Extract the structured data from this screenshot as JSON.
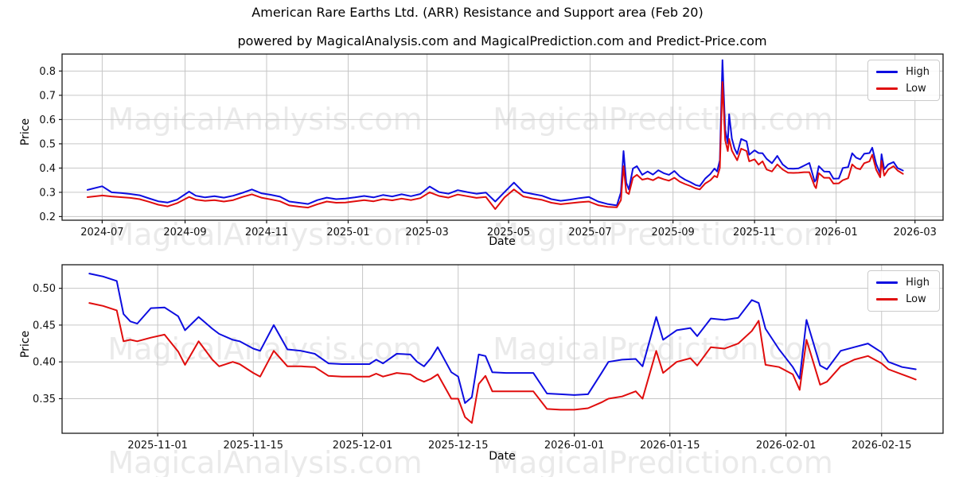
{
  "page": {
    "title": "American Rare Earths Ltd. (ARR) Resistance and Support area (Feb 20)",
    "subtitle": "powered by MagicalAnalysis.com and MagicalPrediction.com and Predict-Price.com"
  },
  "watermarks": {
    "left_text": "MagicalAnalysis.com",
    "right_text": "MagicalPrediction.com",
    "color": "rgba(90,90,90,0.13)"
  },
  "colors": {
    "high": "#0d0de0",
    "low": "#e00d0d",
    "grid": "#c6c6c6",
    "spine": "#1a1a1a",
    "tick_text": "#111111"
  },
  "legend": {
    "high_label": "High",
    "low_label": "Low"
  },
  "axis_labels": {
    "x": "Date",
    "y": "Price"
  },
  "chart_data": [
    {
      "type": "line",
      "title": "",
      "xlabel": "Date",
      "ylabel": "Price",
      "grid": true,
      "legend_position": "upper right",
      "ylim": [
        0.185,
        0.87
      ],
      "xlim": [
        "2024-06-01",
        "2026-03-22"
      ],
      "yticks": [
        {
          "v": 0.2,
          "label": "0.2"
        },
        {
          "v": 0.3,
          "label": "0.3"
        },
        {
          "v": 0.4,
          "label": "0.4"
        },
        {
          "v": 0.5,
          "label": "0.5"
        },
        {
          "v": 0.6,
          "label": "0.6"
        },
        {
          "v": 0.7,
          "label": "0.7"
        },
        {
          "v": 0.8,
          "label": "0.8"
        }
      ],
      "xticks": [
        {
          "date": "2024-07-01",
          "label": "2024-07"
        },
        {
          "date": "2024-09-01",
          "label": "2024-09"
        },
        {
          "date": "2024-11-01",
          "label": "2024-11"
        },
        {
          "date": "2025-01-01",
          "label": "2025-01"
        },
        {
          "date": "2025-03-01",
          "label": "2025-03"
        },
        {
          "date": "2025-05-01",
          "label": "2025-05"
        },
        {
          "date": "2025-07-01",
          "label": "2025-07"
        },
        {
          "date": "2025-09-01",
          "label": "2025-09"
        },
        {
          "date": "2025-11-01",
          "label": "2025-11"
        },
        {
          "date": "2026-01-01",
          "label": "2026-01"
        },
        {
          "date": "2026-03-01",
          "label": "2026-03"
        }
      ],
      "x": [
        "2024-06-20",
        "2024-07-01",
        "2024-07-08",
        "2024-07-15",
        "2024-07-22",
        "2024-07-29",
        "2024-08-05",
        "2024-08-12",
        "2024-08-19",
        "2024-08-26",
        "2024-09-04",
        "2024-09-09",
        "2024-09-16",
        "2024-09-23",
        "2024-09-30",
        "2024-10-07",
        "2024-10-14",
        "2024-10-21",
        "2024-10-28",
        "2024-11-04",
        "2024-11-11",
        "2024-11-18",
        "2024-11-25",
        "2024-12-02",
        "2024-12-09",
        "2024-12-16",
        "2024-12-23",
        "2024-12-30",
        "2025-01-06",
        "2025-01-13",
        "2025-01-20",
        "2025-01-27",
        "2025-02-03",
        "2025-02-10",
        "2025-02-17",
        "2025-02-24",
        "2025-03-03",
        "2025-03-10",
        "2025-03-17",
        "2025-03-24",
        "2025-03-31",
        "2025-04-07",
        "2025-04-14",
        "2025-04-21",
        "2025-04-28",
        "2025-05-05",
        "2025-05-12",
        "2025-05-19",
        "2025-05-26",
        "2025-06-02",
        "2025-06-09",
        "2025-06-16",
        "2025-06-23",
        "2025-06-30",
        "2025-07-07",
        "2025-07-14",
        "2025-07-21",
        "2025-07-24",
        "2025-07-26",
        "2025-07-28",
        "2025-07-30",
        "2025-08-02",
        "2025-08-05",
        "2025-08-09",
        "2025-08-13",
        "2025-08-17",
        "2025-08-21",
        "2025-08-25",
        "2025-08-29",
        "2025-09-02",
        "2025-09-06",
        "2025-09-10",
        "2025-09-14",
        "2025-09-18",
        "2025-09-21",
        "2025-09-25",
        "2025-09-29",
        "2025-10-02",
        "2025-10-04",
        "2025-10-06",
        "2025-10-08",
        "2025-10-10",
        "2025-10-12",
        "2025-10-13",
        "2025-10-15",
        "2025-10-17",
        "2025-10-19",
        "2025-10-22",
        "2025-10-26",
        "2025-10-28",
        "2025-11-01",
        "2025-11-04",
        "2025-11-07",
        "2025-11-10",
        "2025-11-14",
        "2025-11-18",
        "2025-11-22",
        "2025-11-26",
        "2025-11-30",
        "2025-12-04",
        "2025-12-08",
        "2025-12-12",
        "2025-12-16",
        "2025-12-17",
        "2025-12-19",
        "2025-12-23",
        "2025-12-27",
        "2025-12-30",
        "2026-01-03",
        "2026-01-06",
        "2026-01-10",
        "2026-01-13",
        "2026-01-16",
        "2026-01-19",
        "2026-01-22",
        "2026-01-26",
        "2026-01-28",
        "2026-01-31",
        "2026-02-03",
        "2026-02-04",
        "2026-02-06",
        "2026-02-09",
        "2026-02-13",
        "2026-02-16",
        "2026-02-20"
      ],
      "series": [
        {
          "name": "High",
          "color_key": "high",
          "values": [
            0.31,
            0.325,
            0.3,
            0.297,
            0.293,
            0.288,
            0.275,
            0.263,
            0.258,
            0.27,
            0.303,
            0.286,
            0.279,
            0.284,
            0.278,
            0.286,
            0.298,
            0.312,
            0.296,
            0.29,
            0.282,
            0.262,
            0.257,
            0.252,
            0.268,
            0.278,
            0.272,
            0.274,
            0.279,
            0.285,
            0.279,
            0.289,
            0.283,
            0.292,
            0.284,
            0.293,
            0.324,
            0.301,
            0.294,
            0.309,
            0.301,
            0.294,
            0.299,
            0.262,
            0.301,
            0.34,
            0.301,
            0.293,
            0.286,
            0.272,
            0.265,
            0.27,
            0.276,
            0.281,
            0.262,
            0.252,
            0.246,
            0.3,
            0.47,
            0.34,
            0.312,
            0.398,
            0.408,
            0.372,
            0.386,
            0.373,
            0.391,
            0.379,
            0.372,
            0.388,
            0.366,
            0.352,
            0.342,
            0.33,
            0.326,
            0.356,
            0.376,
            0.398,
            0.386,
            0.432,
            0.845,
            0.56,
            0.502,
            0.622,
            0.522,
            0.482,
            0.458,
            0.52,
            0.51,
            0.455,
            0.473,
            0.462,
            0.461,
            0.438,
            0.42,
            0.45,
            0.415,
            0.398,
            0.397,
            0.399,
            0.41,
            0.421,
            0.344,
            0.352,
            0.408,
            0.386,
            0.385,
            0.356,
            0.357,
            0.4,
            0.404,
            0.461,
            0.443,
            0.436,
            0.459,
            0.462,
            0.484,
            0.417,
            0.377,
            0.457,
            0.395,
            0.415,
            0.425,
            0.4,
            0.39
          ]
        },
        {
          "name": "Low",
          "color_key": "low",
          "values": [
            0.28,
            0.287,
            0.283,
            0.28,
            0.277,
            0.272,
            0.261,
            0.249,
            0.242,
            0.255,
            0.281,
            0.27,
            0.265,
            0.268,
            0.262,
            0.268,
            0.281,
            0.292,
            0.278,
            0.271,
            0.263,
            0.246,
            0.241,
            0.237,
            0.251,
            0.262,
            0.257,
            0.258,
            0.263,
            0.268,
            0.263,
            0.272,
            0.267,
            0.274,
            0.268,
            0.276,
            0.3,
            0.285,
            0.278,
            0.291,
            0.284,
            0.277,
            0.281,
            0.231,
            0.279,
            0.312,
            0.283,
            0.275,
            0.269,
            0.257,
            0.251,
            0.255,
            0.259,
            0.262,
            0.247,
            0.24,
            0.238,
            0.268,
            0.408,
            0.3,
            0.293,
            0.36,
            0.372,
            0.352,
            0.357,
            0.35,
            0.362,
            0.354,
            0.348,
            0.36,
            0.344,
            0.334,
            0.326,
            0.316,
            0.312,
            0.336,
            0.35,
            0.368,
            0.362,
            0.4,
            0.755,
            0.515,
            0.47,
            0.52,
            0.472,
            0.452,
            0.432,
            0.48,
            0.47,
            0.428,
            0.436,
            0.414,
            0.428,
            0.394,
            0.386,
            0.415,
            0.394,
            0.381,
            0.38,
            0.381,
            0.383,
            0.383,
            0.325,
            0.317,
            0.379,
            0.36,
            0.36,
            0.336,
            0.337,
            0.35,
            0.358,
            0.415,
            0.4,
            0.395,
            0.42,
            0.428,
            0.455,
            0.393,
            0.362,
            0.43,
            0.369,
            0.394,
            0.408,
            0.39,
            0.376
          ]
        }
      ]
    },
    {
      "type": "line",
      "title": "",
      "xlabel": "Date",
      "ylabel": "Price",
      "grid": true,
      "legend_position": "upper right",
      "ylim": [
        0.303,
        0.532
      ],
      "xlim": [
        "2025-10-18",
        "2026-02-24"
      ],
      "yticks": [
        {
          "v": 0.35,
          "label": "0.35"
        },
        {
          "v": 0.4,
          "label": "0.40"
        },
        {
          "v": 0.45,
          "label": "0.45"
        },
        {
          "v": 0.5,
          "label": "0.50"
        }
      ],
      "xticks": [
        {
          "date": "2025-11-01",
          "label": "2025-11-01"
        },
        {
          "date": "2025-11-15",
          "label": "2025-11-15"
        },
        {
          "date": "2025-12-01",
          "label": "2025-12-01"
        },
        {
          "date": "2025-12-15",
          "label": "2025-12-15"
        },
        {
          "date": "2026-01-01",
          "label": "2026-01-01"
        },
        {
          "date": "2026-01-15",
          "label": "2026-01-15"
        },
        {
          "date": "2026-02-01",
          "label": "2026-02-01"
        },
        {
          "date": "2026-02-15",
          "label": "2026-02-15"
        }
      ],
      "x": [
        "2025-10-22",
        "2025-10-24",
        "2025-10-26",
        "2025-10-27",
        "2025-10-28",
        "2025-10-29",
        "2025-10-31",
        "2025-11-02",
        "2025-11-04",
        "2025-11-05",
        "2025-11-07",
        "2025-11-09",
        "2025-11-10",
        "2025-11-12",
        "2025-11-13",
        "2025-11-15",
        "2025-11-16",
        "2025-11-18",
        "2025-11-20",
        "2025-11-22",
        "2025-11-24",
        "2025-11-26",
        "2025-11-28",
        "2025-11-30",
        "2025-12-02",
        "2025-12-03",
        "2025-12-04",
        "2025-12-06",
        "2025-12-08",
        "2025-12-09",
        "2025-12-10",
        "2025-12-11",
        "2025-12-12",
        "2025-12-14",
        "2025-12-15",
        "2025-12-16",
        "2025-12-17",
        "2025-12-18",
        "2025-12-19",
        "2025-12-20",
        "2025-12-22",
        "2025-12-24",
        "2025-12-26",
        "2025-12-28",
        "2025-12-30",
        "2026-01-01",
        "2026-01-03",
        "2026-01-05",
        "2026-01-06",
        "2026-01-08",
        "2026-01-10",
        "2026-01-11",
        "2026-01-13",
        "2026-01-14",
        "2026-01-16",
        "2026-01-18",
        "2026-01-19",
        "2026-01-21",
        "2026-01-23",
        "2026-01-25",
        "2026-01-27",
        "2026-01-28",
        "2026-01-29",
        "2026-01-31",
        "2026-02-02",
        "2026-02-03",
        "2026-02-04",
        "2026-02-06",
        "2026-02-07",
        "2026-02-09",
        "2026-02-11",
        "2026-02-13",
        "2026-02-15",
        "2026-02-16",
        "2026-02-18",
        "2026-02-20"
      ],
      "series": [
        {
          "name": "High",
          "color_key": "high",
          "values": [
            0.52,
            0.516,
            0.51,
            0.465,
            0.455,
            0.452,
            0.473,
            0.474,
            0.462,
            0.443,
            0.461,
            0.445,
            0.438,
            0.43,
            0.428,
            0.418,
            0.415,
            0.45,
            0.417,
            0.415,
            0.411,
            0.398,
            0.397,
            0.397,
            0.397,
            0.403,
            0.398,
            0.411,
            0.41,
            0.4,
            0.394,
            0.405,
            0.42,
            0.386,
            0.38,
            0.344,
            0.352,
            0.41,
            0.408,
            0.386,
            0.385,
            0.385,
            0.385,
            0.357,
            0.356,
            0.355,
            0.356,
            0.385,
            0.4,
            0.403,
            0.404,
            0.394,
            0.461,
            0.43,
            0.443,
            0.446,
            0.435,
            0.459,
            0.457,
            0.46,
            0.484,
            0.48,
            0.445,
            0.417,
            0.393,
            0.377,
            0.457,
            0.395,
            0.39,
            0.415,
            0.42,
            0.425,
            0.413,
            0.4,
            0.393,
            0.39
          ]
        },
        {
          "name": "Low",
          "color_key": "low",
          "values": [
            0.48,
            0.476,
            0.47,
            0.428,
            0.43,
            0.428,
            0.433,
            0.437,
            0.414,
            0.396,
            0.428,
            0.403,
            0.394,
            0.4,
            0.397,
            0.385,
            0.38,
            0.415,
            0.394,
            0.394,
            0.393,
            0.381,
            0.38,
            0.38,
            0.38,
            0.384,
            0.38,
            0.385,
            0.383,
            0.377,
            0.373,
            0.377,
            0.383,
            0.35,
            0.35,
            0.325,
            0.317,
            0.37,
            0.381,
            0.36,
            0.36,
            0.36,
            0.36,
            0.336,
            0.335,
            0.335,
            0.337,
            0.345,
            0.35,
            0.353,
            0.36,
            0.35,
            0.415,
            0.385,
            0.4,
            0.405,
            0.395,
            0.42,
            0.418,
            0.425,
            0.442,
            0.456,
            0.396,
            0.393,
            0.383,
            0.362,
            0.43,
            0.369,
            0.373,
            0.394,
            0.403,
            0.408,
            0.398,
            0.39,
            0.383,
            0.376
          ]
        }
      ]
    }
  ]
}
